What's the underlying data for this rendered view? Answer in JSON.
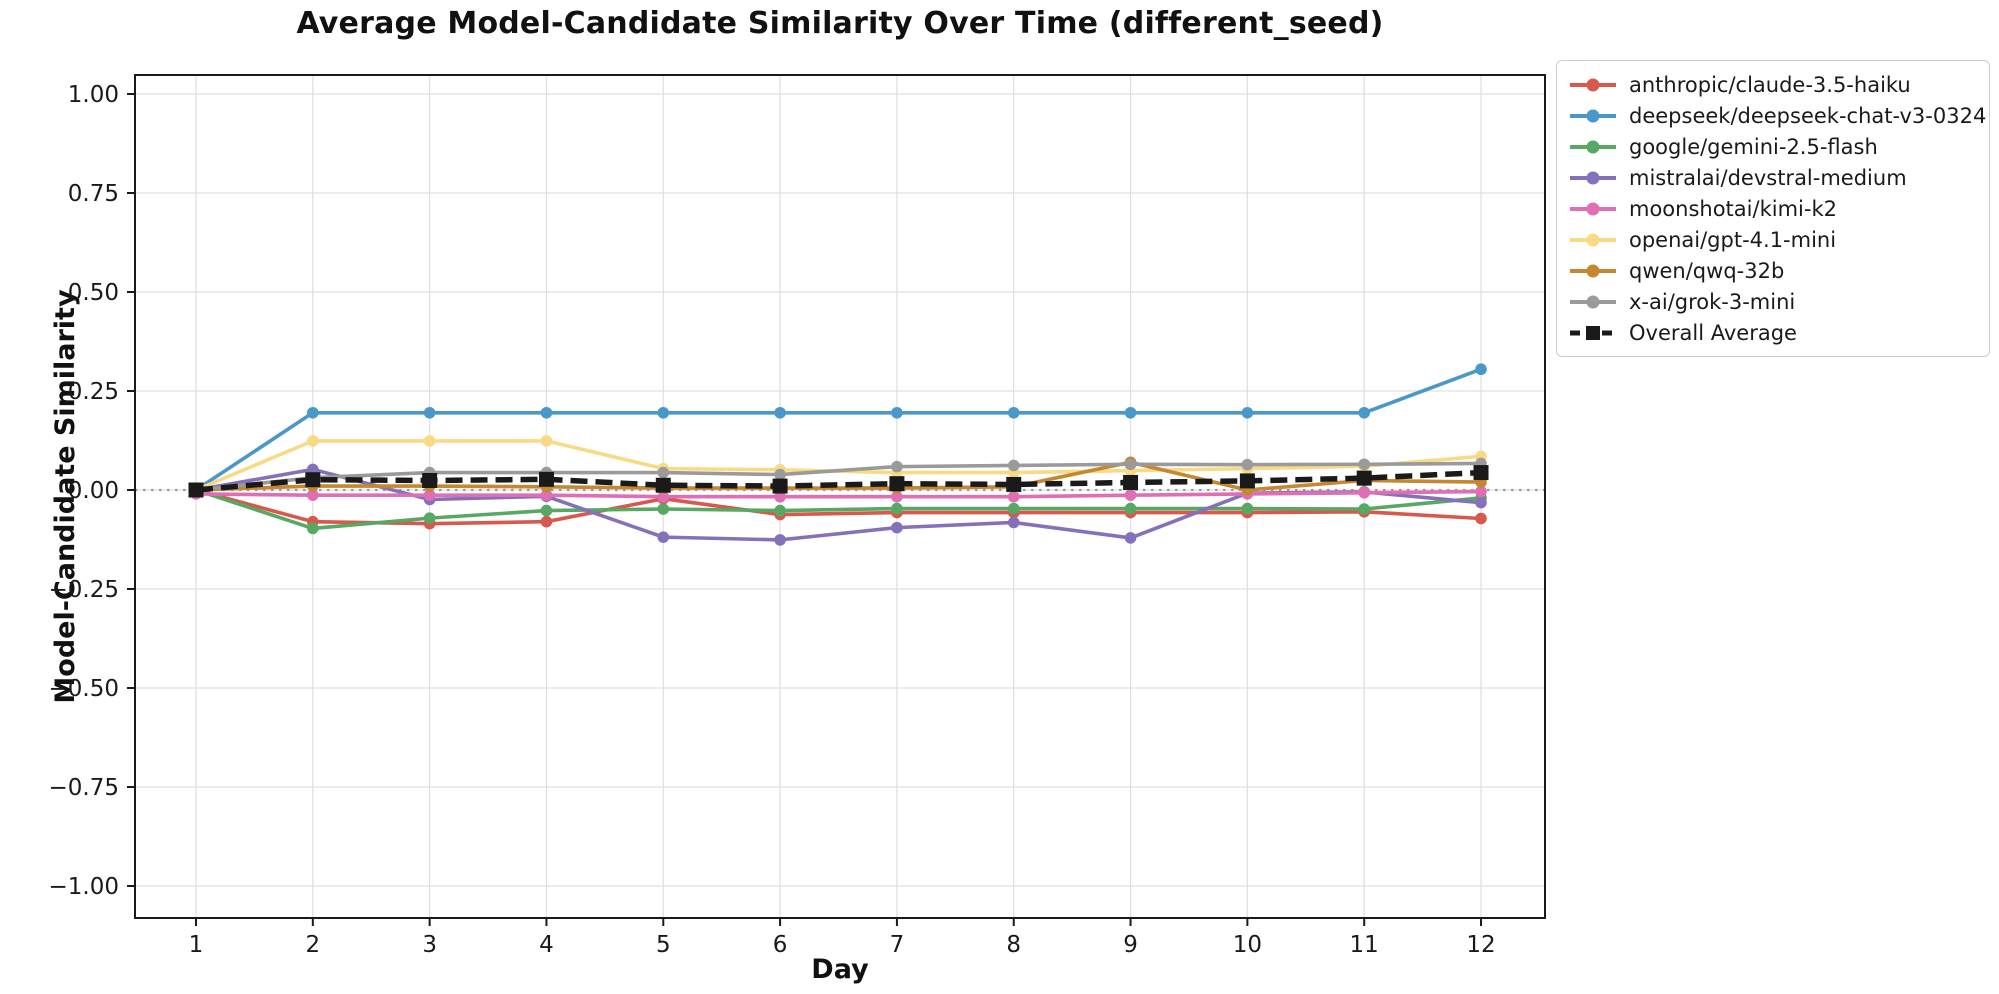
{
  "chart_data": {
    "type": "line",
    "title": "Average Model-Candidate Similarity Over Time (different_seed)",
    "xlabel": "Day",
    "ylabel": "Model-Candidate Similarity",
    "x": [
      1,
      2,
      3,
      4,
      5,
      6,
      7,
      8,
      9,
      10,
      11,
      12
    ],
    "x_tick_labels": [
      "1",
      "2",
      "3",
      "4",
      "5",
      "6",
      "7",
      "8",
      "9",
      "10",
      "11",
      "12"
    ],
    "y_ticks": [
      {
        "value": 1.0,
        "label": "1.00"
      },
      {
        "value": 0.75,
        "label": "0.75"
      },
      {
        "value": 0.5,
        "label": "0.50"
      },
      {
        "value": 0.25,
        "label": "0.25"
      },
      {
        "value": 0.0,
        "label": "0.00"
      },
      {
        "value": -0.25,
        "label": "−0.25"
      },
      {
        "value": -0.5,
        "label": "−0.50"
      },
      {
        "value": -0.75,
        "label": "−0.75"
      },
      {
        "value": -1.0,
        "label": "−1.00"
      }
    ],
    "ylim": [
      -1.0,
      1.0
    ],
    "grid": true,
    "grid_color": "#e0e0e0",
    "zero_line": {
      "value": 0.0,
      "style": "dotted",
      "color": "#999999"
    },
    "legend_position": "outside upper right",
    "series": [
      {
        "name": "anthropic/claude-3.5-haiku",
        "color": "#d9584e",
        "line_style": "solid",
        "marker": "circle",
        "values": [
          0.0,
          -0.08,
          -0.085,
          -0.08,
          -0.022,
          -0.062,
          -0.057,
          -0.057,
          -0.057,
          -0.057,
          -0.055,
          -0.072
        ]
      },
      {
        "name": "deepseek/deepseek-chat-v3-0324",
        "color": "#4a98c9",
        "line_style": "solid",
        "marker": "circle",
        "values": [
          0.0,
          0.195,
          0.195,
          0.195,
          0.195,
          0.195,
          0.195,
          0.195,
          0.195,
          0.195,
          0.195,
          0.305
        ]
      },
      {
        "name": "google/gemini-2.5-flash",
        "color": "#57a862",
        "line_style": "solid",
        "marker": "circle",
        "values": [
          0.0,
          -0.097,
          -0.071,
          -0.052,
          -0.048,
          -0.052,
          -0.047,
          -0.047,
          -0.047,
          -0.047,
          -0.048,
          -0.02
        ]
      },
      {
        "name": "mistralai/devstral-medium",
        "color": "#8571b9",
        "line_style": "solid",
        "marker": "circle",
        "values": [
          0.0,
          0.052,
          -0.024,
          -0.016,
          -0.119,
          -0.126,
          -0.095,
          -0.082,
          -0.121,
          -0.008,
          -0.005,
          -0.032
        ]
      },
      {
        "name": "moonshotai/kimi-k2",
        "color": "#df6eb5",
        "line_style": "solid",
        "marker": "circle",
        "values": [
          -0.01,
          -0.013,
          -0.013,
          -0.013,
          -0.017,
          -0.017,
          -0.017,
          -0.017,
          -0.013,
          -0.01,
          -0.007,
          -0.004
        ]
      },
      {
        "name": "openai/gpt-4.1-mini",
        "color": "#f8da85",
        "line_style": "solid",
        "marker": "circle",
        "values": [
          0.0,
          0.124,
          0.124,
          0.124,
          0.054,
          0.051,
          0.044,
          0.044,
          0.049,
          0.054,
          0.06,
          0.085
        ]
      },
      {
        "name": "qwen/qwq-32b",
        "color": "#c5872f",
        "line_style": "solid",
        "marker": "circle",
        "values": [
          0.0,
          0.01,
          0.01,
          0.008,
          0.005,
          0.005,
          0.005,
          0.008,
          0.07,
          0.0,
          0.024,
          0.02
        ]
      },
      {
        "name": "x-ai/grok-3-mini",
        "color": "#9a9a9a",
        "line_style": "solid",
        "marker": "circle",
        "values": [
          0.0,
          0.031,
          0.044,
          0.044,
          0.044,
          0.039,
          0.059,
          0.062,
          0.065,
          0.064,
          0.065,
          0.067
        ]
      },
      {
        "name": "Overall Average",
        "color": "#1a1a1a",
        "line_style": "dashed",
        "marker": "square",
        "values": [
          0.0,
          0.026,
          0.024,
          0.027,
          0.012,
          0.01,
          0.016,
          0.014,
          0.019,
          0.023,
          0.03,
          0.044
        ]
      }
    ]
  }
}
